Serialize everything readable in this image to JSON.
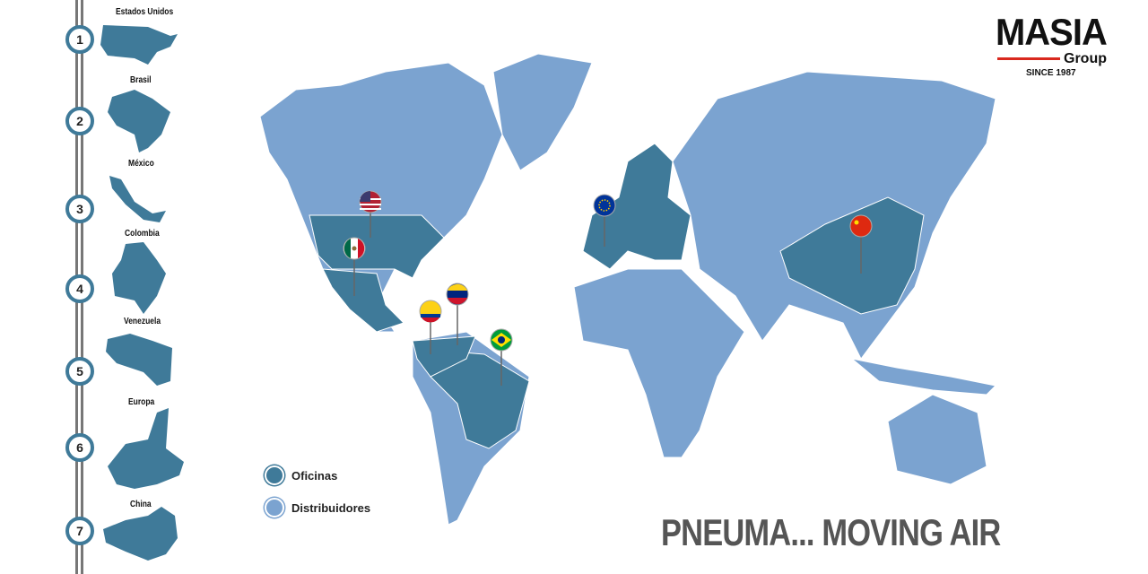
{
  "colors": {
    "office": "#3f7a99",
    "distributor": "#7ba3d0",
    "accent": "#d9281e"
  },
  "timeline": [
    {
      "num": "1",
      "label": "Estados Unidos"
    },
    {
      "num": "2",
      "label": "Brasil"
    },
    {
      "num": "3",
      "label": "México"
    },
    {
      "num": "4",
      "label": "Colombia"
    },
    {
      "num": "5",
      "label": "Venezuela"
    },
    {
      "num": "6",
      "label": "Europa"
    },
    {
      "num": "7",
      "label": "China"
    }
  ],
  "logo": {
    "name": "MASIA",
    "sub": "Group",
    "since": "SINCE 1987"
  },
  "legend": {
    "office": "Oficinas",
    "distributor": "Distribuidores"
  },
  "pins": [
    "usa-flag",
    "mexico-flag",
    "venezuela-flag",
    "colombia-flag",
    "brazil-flag",
    "eu-flag",
    "china-flag"
  ],
  "slogan": "PNEUMA... MOVING AIR"
}
